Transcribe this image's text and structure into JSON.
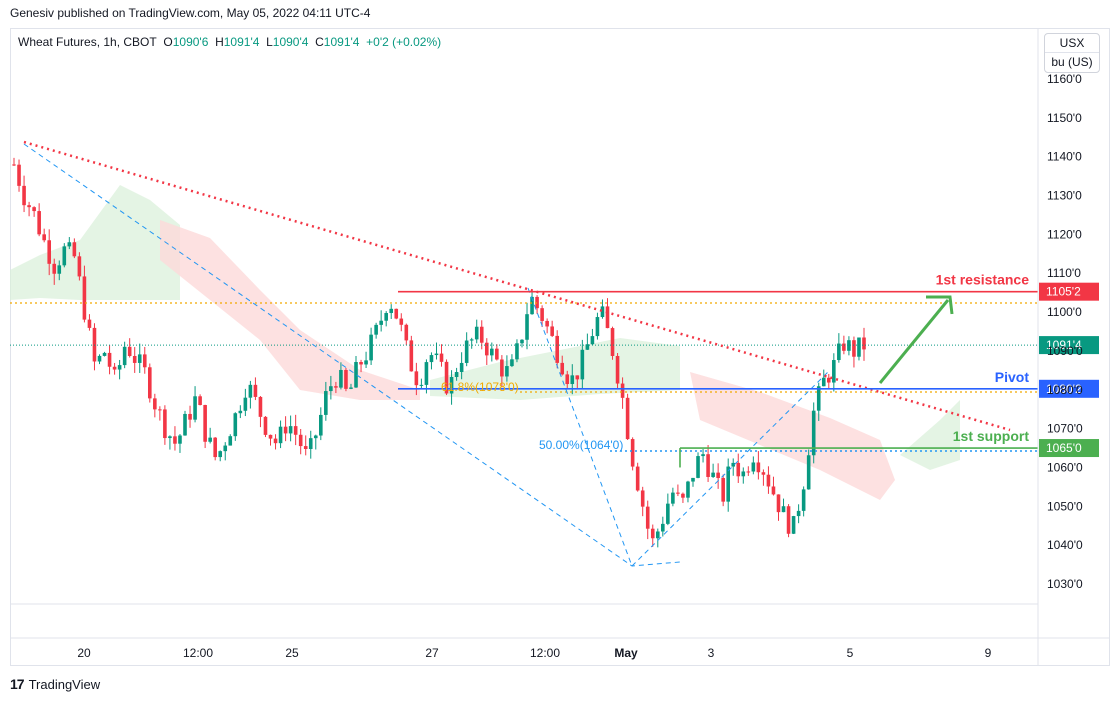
{
  "publisher": "Genesiv published on TradingView.com, May 05, 2022 04:11 UTC-4",
  "legend": {
    "symbol": "Wheat Futures, 1h, CBOT",
    "o_label": "O",
    "o_value": "1090'6",
    "h_label": "H",
    "h_value": "1091'4",
    "l_label": "L",
    "l_value": "1090'4",
    "c_label": "C",
    "c_value": "1091'4",
    "change": "+0'2 (+0.02%)"
  },
  "currency": "USX",
  "unit": "bu (US)",
  "footer_brand": "TradingView",
  "colors": {
    "up": "#089981",
    "down": "#f23645",
    "resistance": "#f23645",
    "pivot": "#2962ff",
    "support": "#4caf50",
    "trend": "#f23645",
    "fib": "#2196f3",
    "orange": "#f2a900",
    "cloud_green": "#d9f0d9",
    "cloud_red": "#fcdada"
  },
  "chart_data": {
    "type": "candlestick",
    "symbol": "Wheat Futures",
    "interval": "1h",
    "y_ticks": [
      "1160'0",
      "1150'0",
      "1140'0",
      "1130'0",
      "1120'0",
      "1110'0",
      "1100'0",
      "1090'0",
      "1080'0",
      "1070'0",
      "1060'0",
      "1050'0",
      "1040'0",
      "1030'0"
    ],
    "x_ticks": [
      "20",
      "12:00",
      "25",
      "27",
      "12:00",
      "May",
      "3",
      "5",
      "9"
    ],
    "ylim": [
      1027,
      1165
    ],
    "last_price": "1091'4",
    "levels": [
      {
        "name": "1st resistance",
        "price": 1105.25,
        "label": "1105'2"
      },
      {
        "name": "Pivot",
        "price": 1080.25,
        "label": "1080'2"
      },
      {
        "name": "1st support",
        "price": 1065,
        "label": "1065'0"
      }
    ],
    "fib_labels": [
      "61.8%(1078'0)",
      "50.00%(1064'0)"
    ],
    "close_path": [
      1138,
      1130,
      1125,
      1118,
      1112,
      1116,
      1114,
      1100,
      1086,
      1090,
      1082,
      1092,
      1088,
      1084,
      1076,
      1070,
      1066,
      1072,
      1078,
      1068,
      1062,
      1068,
      1074,
      1082,
      1076,
      1070,
      1066,
      1072,
      1068,
      1062,
      1070,
      1080,
      1084,
      1078,
      1086,
      1090,
      1096,
      1104,
      1098,
      1088,
      1082,
      1090,
      1086,
      1080,
      1088,
      1092,
      1094,
      1090,
      1086,
      1084,
      1092,
      1104,
      1100,
      1094,
      1088,
      1082,
      1086,
      1094,
      1100,
      1092,
      1080,
      1064,
      1052,
      1040,
      1046,
      1054,
      1050,
      1058,
      1064,
      1058,
      1052,
      1062,
      1058,
      1064,
      1060,
      1054,
      1048,
      1044,
      1056,
      1074,
      1082,
      1086,
      1092,
      1090,
      1091.5
    ]
  }
}
